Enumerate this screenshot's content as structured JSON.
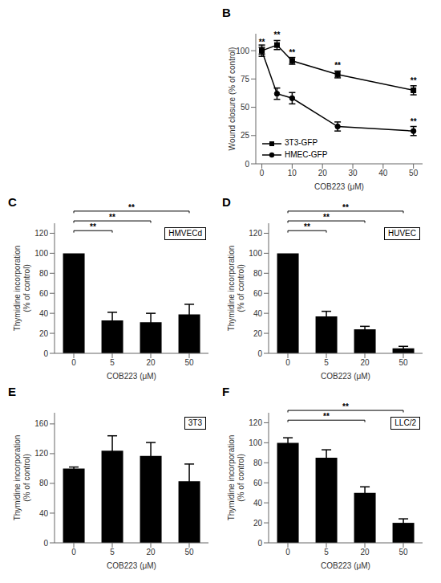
{
  "chart_data": [
    {
      "type": "line",
      "x": [
        0,
        5,
        10,
        25,
        50
      ],
      "series": [
        {
          "name": "3T3-GFP",
          "color": "#000000",
          "marker": "square",
          "values": [
            100,
            105,
            91,
            79,
            65
          ],
          "errors": [
            3,
            4,
            3,
            3,
            4
          ]
        },
        {
          "name": "HMEC-GFP",
          "color": "#000000",
          "marker": "circle",
          "values": [
            100,
            62,
            58,
            33,
            29
          ],
          "errors": [
            5,
            5,
            5,
            4,
            4
          ]
        }
      ],
      "xlabel": "COB223 (μM)",
      "ylabel": "Wound closure (% of control)",
      "xlim": [
        -2,
        53
      ],
      "xticks": [
        0,
        10,
        20,
        30,
        40,
        50
      ],
      "ylim": [
        0,
        115
      ],
      "yticks": [
        0,
        25,
        50,
        75,
        100
      ],
      "grid": false,
      "legend": "lower left",
      "annotations": [
        {
          "text": "B"
        },
        {
          "text": "**",
          "series": "3T3-GFP",
          "x": 0
        },
        {
          "text": "**",
          "series": "3T3-GFP",
          "x": 5
        },
        {
          "text": "**",
          "series": "3T3-GFP",
          "x": 10
        },
        {
          "text": "**",
          "series": "3T3-GFP",
          "x": 25
        },
        {
          "text": "**",
          "series": "3T3-GFP",
          "x": 50
        },
        {
          "text": "**",
          "series": "HMEC-GFP",
          "x": 50
        }
      ]
    },
    {
      "type": "bar",
      "title": "HMVECd",
      "categories": [
        "0",
        "5",
        "20",
        "50"
      ],
      "values": [
        100,
        33,
        31,
        39
      ],
      "errors": [
        0,
        8,
        9,
        10
      ],
      "color": "#000000",
      "xlabel": "COB223 (μM)",
      "ylabel": "Thymidine incorporation\n(% of control)",
      "ylim": [
        0,
        130
      ],
      "yticks": [
        0,
        20,
        40,
        60,
        80,
        100,
        120
      ],
      "grid": false,
      "annotations": [
        {
          "text": "C"
        },
        {
          "text": "**",
          "from": "0",
          "to": "5"
        },
        {
          "text": "**",
          "from": "0",
          "to": "20"
        },
        {
          "text": "**",
          "from": "0",
          "to": "50"
        }
      ]
    },
    {
      "type": "bar",
      "title": "HUVEC",
      "categories": [
        "0",
        "5",
        "20",
        "50"
      ],
      "values": [
        100,
        37,
        24,
        5
      ],
      "errors": [
        0,
        5,
        3,
        2
      ],
      "color": "#000000",
      "xlabel": "COB223 (μM)",
      "ylabel": "Thymidine incorporation\n(% of control)",
      "ylim": [
        0,
        130
      ],
      "yticks": [
        0,
        20,
        40,
        60,
        80,
        100,
        120
      ],
      "grid": false,
      "annotations": [
        {
          "text": "D"
        },
        {
          "text": "**",
          "from": "0",
          "to": "5"
        },
        {
          "text": "**",
          "from": "0",
          "to": "20"
        },
        {
          "text": "**",
          "from": "0",
          "to": "50"
        }
      ]
    },
    {
      "type": "bar",
      "title": "3T3",
      "categories": [
        "0",
        "5",
        "20",
        "50"
      ],
      "values": [
        100,
        124,
        117,
        83
      ],
      "errors": [
        2,
        20,
        18,
        23
      ],
      "color": "#000000",
      "xlabel": "COB223 (μM)",
      "ylabel": "Thymidine incorporation\n(% of control)",
      "ylim": [
        0,
        175
      ],
      "yticks": [
        0,
        40,
        80,
        120,
        160
      ],
      "grid": false,
      "annotations": [
        {
          "text": "E"
        }
      ]
    },
    {
      "type": "bar",
      "title": "LLC/2",
      "categories": [
        "0",
        "5",
        "20",
        "50"
      ],
      "values": [
        100,
        85,
        50,
        20
      ],
      "errors": [
        5,
        8,
        6,
        4
      ],
      "color": "#000000",
      "xlabel": "COB223 (μM)",
      "ylabel": "Thymidine incorporation\n(% of control)",
      "ylim": [
        0,
        130
      ],
      "yticks": [
        0,
        20,
        40,
        60,
        80,
        100,
        120
      ],
      "grid": false,
      "annotations": [
        {
          "text": "F"
        },
        {
          "text": "**",
          "from": "0",
          "to": "20"
        },
        {
          "text": "**",
          "from": "0",
          "to": "50"
        }
      ]
    }
  ]
}
